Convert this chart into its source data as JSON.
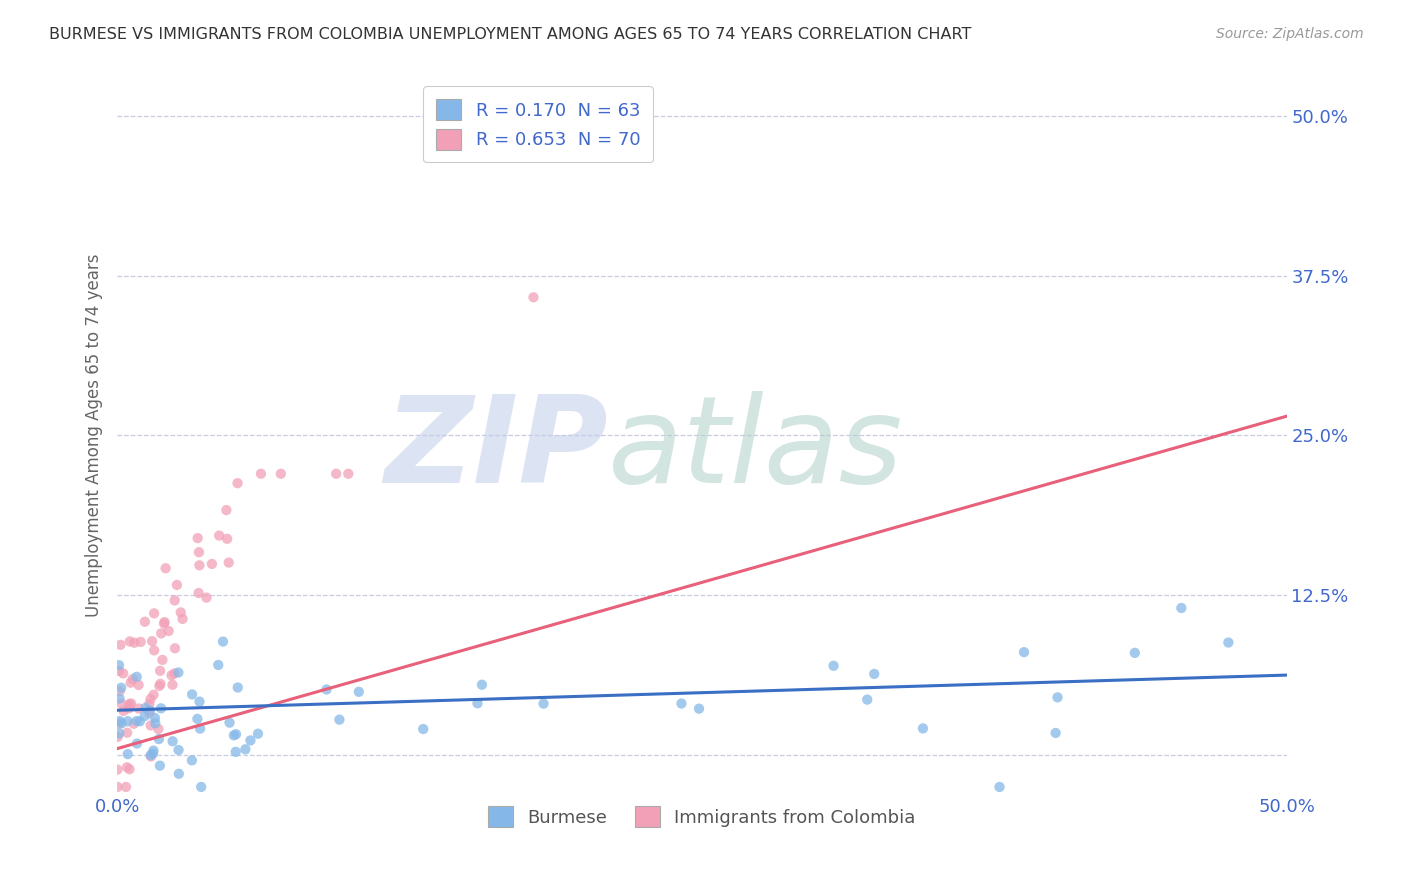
{
  "title": "BURMESE VS IMMIGRANTS FROM COLOMBIA UNEMPLOYMENT AMONG AGES 65 TO 74 YEARS CORRELATION CHART",
  "source": "Source: ZipAtlas.com",
  "ylabel": "Unemployment Among Ages 65 to 74 years",
  "yticks": [
    0.0,
    0.125,
    0.25,
    0.375,
    0.5
  ],
  "ytick_labels": [
    "",
    "12.5%",
    "25.0%",
    "37.5%",
    "50.0%"
  ],
  "xlim": [
    0.0,
    0.5
  ],
  "ylim": [
    -0.03,
    0.53
  ],
  "watermark_zip": "ZIP",
  "watermark_atlas": "atlas",
  "legend_label_1": "R = 0.170  N = 63",
  "legend_label_2": "R = 0.653  N = 70",
  "blue_color": "#85b8e8",
  "pink_color": "#f2a0b8",
  "blue_line_color": "#3a6fc4",
  "pink_line_color": "#e8607a",
  "dash_line_color": "#cccccc",
  "title_color": "#333333",
  "axis_color": "#4169cc",
  "grid_color": "#c8cce0",
  "background_color": "#ffffff",
  "watermark_zip_color": "#c0cce8",
  "watermark_atlas_color": "#b0d0c8",
  "bottom_legend_color": "#555555"
}
